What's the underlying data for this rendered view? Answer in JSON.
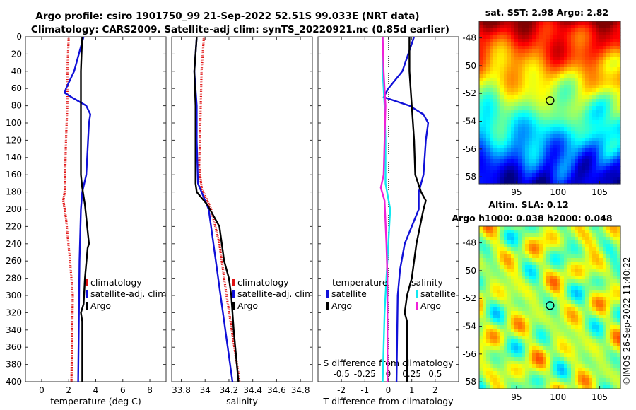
{
  "header": {
    "line1": "Argo profile: csiro 1901750_99 21-Sep-2022 52.51S 99.033E (NRT data)",
    "line2": "Climatology: CARS2009. Satellite-adj clim: synTS_20220921.nc (0.85d earlier)"
  },
  "watermark": "©IMOS 26-Sep-2022 11:40:22",
  "colors": {
    "argo": "#000000",
    "climatology": "#e01010",
    "satellite": "#1010d8",
    "sat_diff": "#10e8f0",
    "argo_s_diff": "#f020d8"
  },
  "chart_data": [
    {
      "id": "temperature",
      "type": "line",
      "title": "",
      "xlabel": "temperature (deg C)",
      "ylabel": "depth",
      "xlim": [
        -1.2,
        9.2
      ],
      "ylim": [
        0,
        400
      ],
      "xticks": [
        0,
        2,
        4,
        6,
        8
      ],
      "xtick_labels": [
        "0",
        "2",
        "4",
        "6",
        "8"
      ],
      "yticks": [
        0,
        20,
        40,
        60,
        80,
        100,
        120,
        140,
        160,
        180,
        200,
        220,
        240,
        260,
        280,
        300,
        320,
        340,
        360,
        380,
        400
      ],
      "ytick_labels": [
        "0",
        "20",
        "40",
        "60",
        "80",
        "100",
        "120",
        "140",
        "160",
        "180",
        "200",
        "220",
        "240",
        "260",
        "280",
        "300",
        "320",
        "340",
        "360",
        "380",
        "400"
      ],
      "legend": [
        "climatology",
        "satellite-adj. clim",
        "Argo"
      ],
      "series": [
        {
          "name": "climatology",
          "color": "#e01010",
          "dotted": true,
          "depth": [
            0,
            40,
            80,
            120,
            180,
            190,
            210,
            260,
            300,
            400
          ],
          "values": [
            2.0,
            1.9,
            1.9,
            1.8,
            1.7,
            1.6,
            1.8,
            2.1,
            2.3,
            2.2
          ]
        },
        {
          "name": "satellite-adj. clim",
          "color": "#1010d8",
          "depth": [
            0,
            40,
            60,
            65,
            70,
            80,
            90,
            100,
            130,
            160,
            180,
            200,
            260,
            400
          ],
          "values": [
            3.1,
            2.4,
            1.8,
            1.7,
            2.2,
            3.3,
            3.6,
            3.5,
            3.4,
            3.3,
            3.0,
            2.9,
            2.8,
            2.7
          ]
        },
        {
          "name": "Argo",
          "color": "#000000",
          "depth": [
            0,
            20,
            40,
            80,
            120,
            160,
            175,
            185,
            195,
            210,
            240,
            245,
            280,
            310,
            320,
            330,
            400
          ],
          "values": [
            3.0,
            2.95,
            2.9,
            2.9,
            2.9,
            2.9,
            3.0,
            3.1,
            3.2,
            3.3,
            3.5,
            3.4,
            3.2,
            3.1,
            2.9,
            3.0,
            3.0
          ]
        }
      ]
    },
    {
      "id": "salinity",
      "type": "line",
      "title": "",
      "xlabel": "salinity",
      "ylabel": "",
      "xlim": [
        33.72,
        34.9
      ],
      "ylim": [
        0,
        400
      ],
      "xticks": [
        33.8,
        34.0,
        34.2,
        34.4,
        34.6,
        34.8
      ],
      "xtick_labels": [
        "33.8",
        "34",
        "34.2",
        "34.4",
        "34.6",
        "34.8"
      ],
      "legend": [
        "climatology",
        "satellite-adj. clim",
        "Argo"
      ],
      "series": [
        {
          "name": "climatology",
          "color": "#e01010",
          "dotted": true,
          "depth": [
            0,
            40,
            100,
            150,
            175,
            200,
            240,
            300,
            400
          ],
          "values": [
            33.99,
            33.97,
            33.96,
            33.95,
            33.97,
            34.05,
            34.12,
            34.18,
            34.29
          ]
        },
        {
          "name": "satellite-adj. clim",
          "color": "#1010d8",
          "depth": [
            0,
            40,
            80,
            120,
            170,
            200,
            260,
            300,
            400
          ],
          "values": [
            33.93,
            33.91,
            33.93,
            33.93,
            33.94,
            34.03,
            34.09,
            34.13,
            34.23
          ]
        },
        {
          "name": "Argo",
          "color": "#000000",
          "depth": [
            0,
            40,
            80,
            120,
            160,
            170,
            180,
            195,
            220,
            260,
            280,
            300,
            340,
            400
          ],
          "values": [
            33.93,
            33.91,
            33.92,
            33.92,
            33.92,
            33.92,
            33.93,
            34.02,
            34.12,
            34.16,
            34.2,
            34.22,
            34.24,
            34.28
          ]
        }
      ]
    },
    {
      "id": "differences",
      "type": "line",
      "title": "",
      "xlabel": "T difference from climatology",
      "x2label": "S difference from climatology",
      "xlim": [
        -3,
        3
      ],
      "ylim": [
        0,
        400
      ],
      "xticks": [
        -2,
        -1,
        0,
        1,
        2
      ],
      "xtick_labels": [
        "-2",
        "-1",
        "0",
        "1",
        "2"
      ],
      "x2ticks": [
        -0.5,
        -0.25,
        0,
        0.25,
        0.5
      ],
      "x2tick_labels": [
        "-0.5",
        "-0.25",
        "0",
        "0.25",
        "0.5"
      ],
      "legend_temperature_title": "temperature",
      "legend_salinity_title": "salinity",
      "legend": [
        "satellite",
        "Argo",
        "satellite",
        "Argo"
      ],
      "series": [
        {
          "name": "T satellite",
          "color": "#1010d8",
          "depth": [
            0,
            40,
            60,
            70,
            80,
            90,
            100,
            120,
            160,
            180,
            200,
            240,
            270,
            300,
            400
          ],
          "values": [
            1.1,
            0.6,
            0.0,
            -0.2,
            0.9,
            1.5,
            1.7,
            1.6,
            1.5,
            1.3,
            1.3,
            0.7,
            0.5,
            0.4,
            0.35
          ]
        },
        {
          "name": "T Argo",
          "color": "#000000",
          "depth": [
            0,
            40,
            80,
            120,
            160,
            180,
            190,
            200,
            240,
            280,
            300,
            320,
            330,
            400
          ],
          "values": [
            0.9,
            0.9,
            1.0,
            1.1,
            1.15,
            1.4,
            1.6,
            1.5,
            1.2,
            1.0,
            0.8,
            0.7,
            0.8,
            0.8
          ]
        },
        {
          "name": "S satellite",
          "color": "#10e8f0",
          "depth": [
            0,
            40,
            80,
            120,
            170,
            200,
            240,
            280,
            320,
            400
          ],
          "values": [
            -0.06,
            -0.06,
            -0.04,
            -0.03,
            -0.03,
            0.02,
            0.0,
            -0.02,
            -0.04,
            -0.06
          ]
        },
        {
          "name": "S Argo",
          "color": "#f020d8",
          "depth": [
            0,
            40,
            60,
            80,
            120,
            160,
            175,
            190,
            240,
            280,
            320,
            400
          ],
          "values": [
            -0.06,
            -0.05,
            -0.04,
            -0.03,
            -0.04,
            -0.05,
            -0.08,
            -0.04,
            -0.02,
            -0.01,
            -0.01,
            -0.01
          ]
        }
      ]
    },
    {
      "id": "sst_map",
      "type": "heatmap",
      "title": "sat. SST: 2.98 Argo: 2.82",
      "xlim": [
        90.5,
        107.5
      ],
      "ylim": [
        -58.5,
        -46.8
      ],
      "xticks": [
        95,
        100,
        105
      ],
      "xtick_labels": [
        "95",
        "100",
        "105"
      ],
      "yticks": [
        -48,
        -50,
        -52,
        -54,
        -56,
        -58
      ],
      "ytick_labels": [
        "-48",
        "-50",
        "-52",
        "-54",
        "-56",
        "-58"
      ],
      "marker": {
        "lon": 99.03,
        "lat": -52.51
      }
    },
    {
      "id": "sla_map",
      "type": "heatmap",
      "title": "Altim. SLA: 0.12",
      "subtitle": "Argo h1000: 0.038 h2000: 0.048",
      "xlim": [
        90.5,
        107.5
      ],
      "ylim": [
        -58.5,
        -46.8
      ],
      "xticks": [
        95,
        100,
        105
      ],
      "xtick_labels": [
        "95",
        "100",
        "105"
      ],
      "yticks": [
        -48,
        -50,
        -52,
        -54,
        -56,
        -58
      ],
      "ytick_labels": [
        "-48",
        "-50",
        "-52",
        "-54",
        "-56",
        "-58"
      ],
      "marker": {
        "lon": 99.03,
        "lat": -52.51
      }
    }
  ]
}
